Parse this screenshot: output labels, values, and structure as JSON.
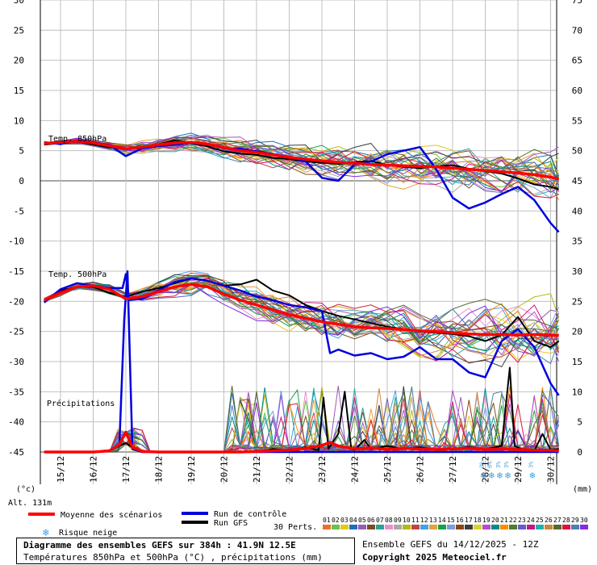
{
  "chart_data": {
    "type": "line",
    "left_axis": {
      "unit_label": "(°c)",
      "ticks": [
        30,
        25,
        20,
        15,
        10,
        5,
        0,
        -5,
        -10,
        -15,
        -20,
        -25,
        -30,
        -35,
        -40,
        -45
      ],
      "ylim": [
        -45,
        30
      ]
    },
    "right_axis": {
      "unit_label": "(mm)",
      "ticks": [
        75,
        70,
        65,
        60,
        55,
        50,
        45,
        40,
        35,
        30,
        25,
        20,
        15,
        10,
        5,
        0
      ]
    },
    "dates": [
      "15/12",
      "16/12",
      "17/12",
      "18/12",
      "19/12",
      "20/12",
      "21/12",
      "22/12",
      "23/12",
      "24/12",
      "25/12",
      "26/12",
      "27/12",
      "28/12",
      "29/12",
      "30/12"
    ],
    "grid": true,
    "annotations": {
      "t850": "Temp. 850hPa",
      "t500": "Temp. 500hPa",
      "precip": "Précipitations",
      "altitude": "Alt. 131m"
    },
    "snow_risk": [
      {
        "day": 28.0,
        "pct": "3%"
      },
      {
        "day": 28.25,
        "pct": "6%"
      },
      {
        "day": 28.5,
        "pct": "3%"
      },
      {
        "day": 28.75,
        "pct": "3%"
      },
      {
        "day": 29.5,
        "pct": "3%"
      }
    ],
    "series": [
      {
        "name": "Moyenne des scénarios",
        "color": "#ff0000",
        "t850_x": [
          14.5,
          15,
          15.5,
          16,
          16.5,
          17,
          17.5,
          18,
          18.5,
          19,
          19.5,
          20,
          20.5,
          21,
          21.5,
          22,
          22.5,
          23,
          23.5,
          24,
          24.5,
          25,
          25.5,
          26,
          26.5,
          27,
          27.5,
          28,
          28.5,
          29,
          29.5,
          30,
          30.25
        ],
        "t850_y": [
          6.2,
          6.4,
          6.6,
          6.3,
          5.8,
          5.3,
          5.6,
          6.0,
          6.3,
          6.4,
          6.1,
          5.5,
          5.0,
          4.7,
          4.3,
          3.9,
          3.6,
          3.3,
          3.1,
          2.9,
          2.7,
          2.6,
          2.5,
          2.4,
          2.3,
          2.1,
          1.9,
          1.7,
          1.5,
          1.3,
          1.0,
          0.6,
          0.3
        ],
        "t500_x": [
          14.5,
          15,
          15.5,
          16,
          16.5,
          17,
          17.5,
          18,
          18.5,
          19,
          19.5,
          20,
          20.5,
          21,
          21.5,
          22,
          22.5,
          23,
          23.5,
          24,
          24.5,
          25,
          25.5,
          26,
          26.5,
          27,
          27.5,
          28,
          28.5,
          29,
          29.5,
          30,
          30.25
        ],
        "t500_y": [
          -19.8,
          -18.6,
          -17.6,
          -17.4,
          -18.0,
          -19.6,
          -19.2,
          -18.4,
          -17.6,
          -17.2,
          -17.6,
          -18.8,
          -19.8,
          -20.6,
          -21.4,
          -22.2,
          -22.8,
          -23.4,
          -23.8,
          -24.2,
          -24.4,
          -24.5,
          -24.7,
          -24.9,
          -25.0,
          -25.2,
          -25.4,
          -25.5,
          -25.5,
          -25.6,
          -25.5,
          -25.6,
          -25.7
        ],
        "precip_x": [
          14.5,
          15,
          15.5,
          16,
          16.5,
          16.8,
          17,
          17.2,
          17.5,
          18,
          18.5,
          19,
          19.5,
          20,
          20.5,
          21,
          21.5,
          22,
          22.5,
          23,
          23.25,
          23.5,
          24,
          24.5,
          25,
          25.5,
          26,
          26.5,
          27,
          27.5,
          28,
          28.5,
          29,
          29.5,
          30,
          30.25
        ],
        "precip_y": [
          0,
          0,
          0,
          0,
          0.2,
          1.2,
          3.3,
          0.8,
          0.1,
          0,
          0,
          0,
          0,
          0,
          0,
          0.1,
          0.2,
          0.3,
          0.6,
          1.1,
          1.6,
          1.0,
          0.5,
          0.7,
          0.4,
          0.6,
          0.5,
          0.4,
          0.5,
          0.6,
          0.4,
          0.5,
          0.4,
          0.3,
          0.3,
          0.2
        ]
      },
      {
        "name": "Run de contrôle",
        "color": "#0000dd",
        "t850_x": [
          14.5,
          15,
          15.5,
          16,
          16.5,
          17,
          17.5,
          18,
          18.5,
          19,
          19.5,
          20,
          20.5,
          21,
          21.5,
          22,
          22.5,
          23,
          23.5,
          24,
          24.5,
          25,
          25.5,
          26,
          26.5,
          27,
          27.5,
          28,
          28.5,
          29,
          29.5,
          30,
          30.25
        ],
        "t850_y": [
          6.4,
          6.1,
          6.7,
          6.4,
          5.9,
          4.1,
          5.4,
          5.8,
          6.0,
          6.3,
          6.0,
          5.4,
          5.3,
          4.9,
          4.4,
          4.0,
          3.2,
          0.5,
          0.0,
          2.7,
          3.2,
          4.4,
          5.0,
          5.6,
          1.9,
          -2.8,
          -4.6,
          -3.6,
          -2.2,
          -1.0,
          -3.2,
          -7.0,
          -8.5
        ],
        "t500_x": [
          14.5,
          15,
          15.5,
          16,
          16.5,
          16.9,
          17,
          17.1,
          17.5,
          18,
          18.5,
          19,
          19.5,
          20,
          20.5,
          21,
          21.5,
          22,
          22.5,
          23,
          23.25,
          23.5,
          24,
          24.5,
          25,
          25.5,
          26,
          26.5,
          27,
          27.5,
          28,
          28.5,
          29,
          29.5,
          30,
          30.25
        ],
        "t500_y": [
          -20.2,
          -18.0,
          -17.0,
          -17.4,
          -17.8,
          -17.8,
          -15.5,
          -19.8,
          -19.6,
          -18.2,
          -16.8,
          -16.2,
          -16.6,
          -17.4,
          -18.2,
          -19.2,
          -19.8,
          -20.6,
          -21.0,
          -21.6,
          -28.6,
          -28.0,
          -29.0,
          -28.6,
          -29.6,
          -29.2,
          -27.6,
          -29.6,
          -29.6,
          -31.8,
          -32.6,
          -26.6,
          -24.6,
          -27.6,
          -33.6,
          -35.6
        ],
        "precip_x": [
          14.5,
          16,
          16.5,
          16.8,
          16.95,
          17.05,
          17.2,
          17.5,
          18,
          30.25
        ],
        "precip_y": [
          0,
          0,
          0.2,
          1.0,
          22.0,
          30.0,
          0.5,
          0,
          0,
          0
        ]
      },
      {
        "name": "Run GFS",
        "color": "#000000",
        "t850_x": [
          14.5,
          15,
          15.5,
          16,
          16.5,
          17,
          17.5,
          18,
          18.5,
          19,
          19.5,
          20,
          20.5,
          21,
          21.5,
          22,
          22.5,
          23,
          23.5,
          24,
          24.5,
          25,
          25.5,
          26,
          26.5,
          27,
          27.5,
          28,
          28.5,
          29,
          29.5,
          30,
          30.25
        ],
        "t850_y": [
          6.0,
          6.3,
          6.5,
          6.0,
          5.5,
          5.4,
          5.6,
          6.1,
          6.7,
          6.2,
          5.7,
          4.9,
          4.5,
          4.3,
          3.8,
          3.6,
          3.2,
          3.0,
          2.8,
          3.1,
          3.3,
          2.6,
          2.3,
          2.1,
          2.4,
          2.6,
          2.0,
          1.6,
          1.2,
          0.4,
          -0.6,
          -1.0,
          -1.4
        ],
        "t500_x": [
          14.5,
          15,
          15.5,
          16,
          16.5,
          17,
          17.5,
          18,
          18.5,
          19,
          19.5,
          20,
          20.5,
          21,
          21.5,
          22,
          22.5,
          23,
          23.5,
          24,
          24.5,
          25,
          25.5,
          26,
          26.5,
          27,
          27.5,
          28,
          28.5,
          29,
          29.5,
          30,
          30.25
        ],
        "t500_y": [
          -20.0,
          -18.2,
          -17.6,
          -17.6,
          -18.6,
          -19.2,
          -18.4,
          -17.8,
          -17.0,
          -16.2,
          -16.6,
          -17.4,
          -17.2,
          -16.4,
          -18.2,
          -19.0,
          -20.6,
          -21.6,
          -22.4,
          -23.0,
          -23.6,
          -24.2,
          -24.6,
          -25.0,
          -25.2,
          -25.4,
          -25.8,
          -26.6,
          -25.6,
          -22.6,
          -26.6,
          -27.6,
          -26.6
        ],
        "precip_x": [
          14.5,
          16,
          16.5,
          17,
          17.3,
          17.6,
          18,
          20,
          21,
          21.5,
          22,
          22.5,
          22.9,
          23.05,
          23.2,
          23.5,
          23.7,
          23.9,
          24,
          24.3,
          24.5,
          25,
          25.5,
          26,
          26.5,
          27,
          27.5,
          28,
          28.5,
          28.75,
          28.9,
          29.1,
          29.5,
          29.75,
          30,
          30.25
        ],
        "precip_y": [
          0,
          0,
          0.3,
          1.5,
          0.3,
          0,
          0,
          0,
          0,
          0.5,
          0.2,
          0.8,
          0.3,
          9.0,
          0.5,
          3.0,
          10.0,
          0.5,
          0.3,
          2.0,
          0.5,
          1.0,
          0.5,
          0.8,
          0.3,
          0.5,
          0.8,
          0.4,
          1.0,
          14.0,
          1.0,
          0.5,
          0.2,
          3.0,
          0.4,
          0.5
        ]
      }
    ],
    "perturbations_count": 30
  },
  "legend": {
    "mean_label": "Moyenne des scénarios",
    "control_label": "Run de contrôle",
    "gfs_label": "Run GFS",
    "snow_label": "Risque neige",
    "perts_label": "30 Perts.",
    "pert_numbers": [
      "01",
      "02",
      "03",
      "04",
      "05",
      "06",
      "07",
      "08",
      "09",
      "10",
      "11",
      "12",
      "13",
      "14",
      "15",
      "16",
      "17",
      "18",
      "19",
      "20",
      "21",
      "22",
      "23",
      "24",
      "25",
      "26",
      "27",
      "28",
      "29",
      "30"
    ],
    "pert_colors": [
      "#e4732a",
      "#6cc24a",
      "#e8c51b",
      "#1f6fbf",
      "#9c5ab5",
      "#7a4e1e",
      "#2aa198",
      "#f08dcd",
      "#a8a8a8",
      "#b5b814",
      "#c44444",
      "#45a0e6",
      "#e6a13a",
      "#1b9e4b",
      "#7e9cd8",
      "#8b4513",
      "#3c3c3c",
      "#d4d432",
      "#b04fd0",
      "#008b8b",
      "#ff8c00",
      "#4f7d2a",
      "#6a5acd",
      "#c71585",
      "#20b2aa",
      "#cd853f",
      "#556b2f",
      "#dc143c",
      "#4682b4",
      "#8a2be2"
    ]
  },
  "footer": {
    "title": "Diagramme des ensembles GEFS sur 384h : 41.9N 12.5E",
    "subtitle": "Températures 850hPa et 500hPa (°C) , précipitations (mm)",
    "run": "Ensemble GEFS du 14/12/2025 - 12Z",
    "copyright": "Copyright 2025 Meteociel.fr"
  }
}
